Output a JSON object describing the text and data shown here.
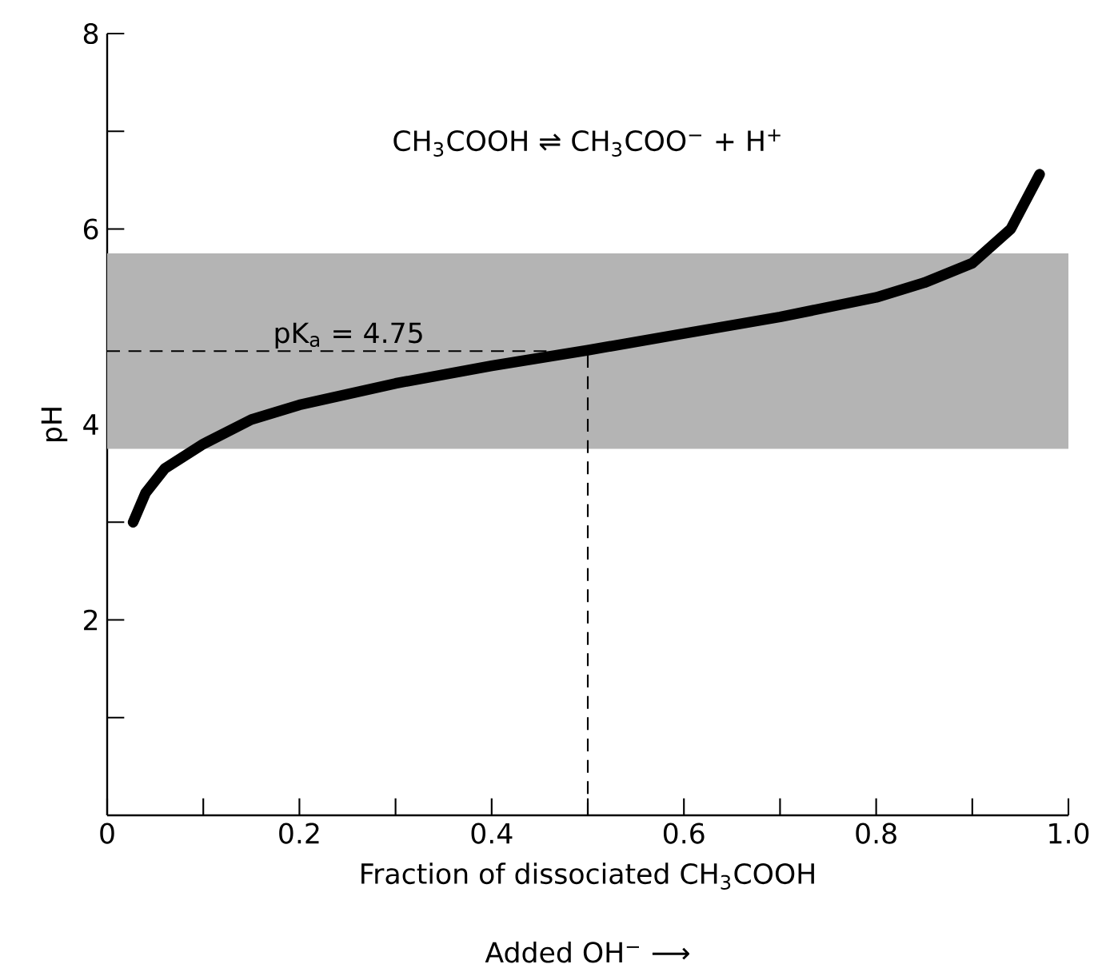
{
  "chart_data": {
    "type": "line",
    "xlabel": "Fraction of dissociated CH$_{3}$COOH",
    "ylabel": "pH",
    "annotations": [
      "CH$_{3}$COOH ⇌ CH$_{3}$COO$^{−}$ + H$^{+}$",
      "Added OH$^{−}$ ⟶"
    ],
    "series": [
      {
        "color": "#000000",
        "x": [
          0.027,
          0.04,
          0.06,
          0.1,
          0.15,
          0.2,
          0.3,
          0.4,
          0.5,
          0.6,
          0.7,
          0.8,
          0.85,
          0.9,
          0.94,
          0.97
        ],
        "values": [
          3.0,
          3.3,
          3.55,
          3.8,
          4.05,
          4.2,
          4.42,
          4.6,
          4.76,
          4.93,
          5.1,
          5.3,
          5.45,
          5.65,
          6.0,
          6.56
        ]
      }
    ],
    "xlim": [
      0,
      1
    ],
    "ylim": [
      0,
      8
    ],
    "xticks": [
      0,
      {
        "value": 0.1,
        "label": null
      },
      0.2,
      {
        "value": 0.3,
        "label": null
      },
      0.4,
      {
        "value": 0.5,
        "label": null
      },
      0.6,
      {
        "value": 0.7,
        "label": null
      },
      0.8,
      {
        "value": 0.9,
        "label": null
      },
      {
        "value": 1,
        "label": "1.0"
      }
    ],
    "yticks": [
      {
        "value": 0,
        "label": null
      },
      {
        "value": 1,
        "label": null
      },
      2,
      {
        "value": 3,
        "label": null
      },
      4,
      {
        "value": 5,
        "label": null
      },
      6,
      {
        "value": 7,
        "label": null
      },
      8
    ],
    "ref_lines": [
      {
        "axis": "y",
        "value": 4.75,
        "label": "pK$_{a}$ = 4.75",
        "line_style": "dashed",
        "color": "#000000"
      },
      {
        "axis": "x",
        "value": 0.5,
        "line_style": "dashed",
        "color": "#000000"
      }
    ],
    "bands": [
      {
        "axis": "y",
        "from": 3.75,
        "to": 5.75,
        "color": "#b4b4b4"
      }
    ]
  }
}
